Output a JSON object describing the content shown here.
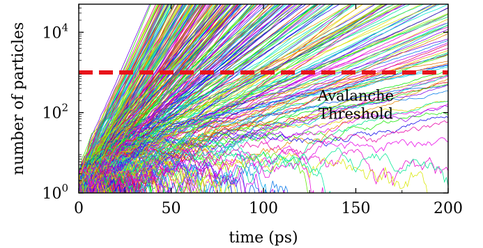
{
  "chart_data": {
    "type": "line",
    "xlabel": "time (ps)",
    "ylabel": "number of particles",
    "xlim": [
      0,
      200
    ],
    "ylim": [
      1,
      50000
    ],
    "y_scale": "log",
    "grid": false,
    "x_ticks": [
      {
        "value": 0,
        "label": "0"
      },
      {
        "value": 50,
        "label": "50"
      },
      {
        "value": 100,
        "label": "100"
      },
      {
        "value": 150,
        "label": "150"
      },
      {
        "value": 200,
        "label": "200"
      }
    ],
    "y_ticks": [
      {
        "value": 1,
        "base": "10",
        "exp": "0"
      },
      {
        "value": 100,
        "base": "10",
        "exp": "2"
      },
      {
        "value": 10000,
        "base": "10",
        "exp": "4"
      }
    ],
    "threshold": {
      "value": 1000,
      "color": "#e8141b"
    },
    "annotation": {
      "line1": "Avalanche",
      "line2": "Threshold",
      "x": 150,
      "y": 200
    },
    "series_count": 900,
    "series_style": "many thin rainbow-colored trajectories"
  }
}
